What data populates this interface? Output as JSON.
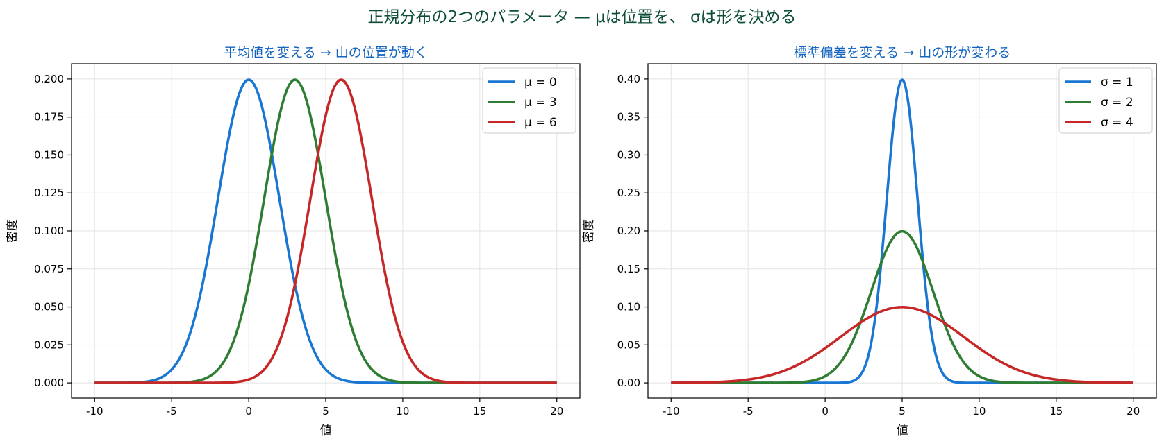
{
  "figure": {
    "title": "正規分布の2つのパラメータ — μは位置を、 σは形を決める",
    "title_color": "#0d4d3a"
  },
  "chart_data": [
    {
      "type": "line",
      "title": "平均値を変える → 山の位置が動く",
      "title_color": "#1565c0",
      "xlabel": "値",
      "ylabel": "密度",
      "xlim": [
        -11.5,
        21.5
      ],
      "ylim": [
        -0.01,
        0.21
      ],
      "xticks": [
        -10,
        -5,
        0,
        5,
        10,
        15,
        20
      ],
      "xtick_labels": [
        "-10",
        "-5",
        "0",
        "5",
        "10",
        "15",
        "20"
      ],
      "yticks": [
        0,
        0.025,
        0.05,
        0.075,
        0.1,
        0.125,
        0.15,
        0.175,
        0.2
      ],
      "ytick_labels": [
        "0.000",
        "0.025",
        "0.050",
        "0.075",
        "0.100",
        "0.125",
        "0.150",
        "0.175",
        "0.200"
      ],
      "grid": true,
      "legend_position": "top-right",
      "x_domain": [
        -10,
        20
      ],
      "series": [
        {
          "name": "μ = 0",
          "mu": 0,
          "sigma": 2,
          "color": "#1976d2"
        },
        {
          "name": "μ = 3",
          "mu": 3,
          "sigma": 2,
          "color": "#2e7d32"
        },
        {
          "name": "μ = 6",
          "mu": 6,
          "sigma": 2,
          "color": "#c62828"
        }
      ]
    },
    {
      "type": "line",
      "title": "標準偏差を変える → 山の形が変わる",
      "title_color": "#1565c0",
      "xlabel": "値",
      "ylabel": "密度",
      "xlim": [
        -11.5,
        21.5
      ],
      "ylim": [
        -0.02,
        0.42
      ],
      "xticks": [
        -10,
        -5,
        0,
        5,
        10,
        15,
        20
      ],
      "xtick_labels": [
        "-10",
        "-5",
        "0",
        "5",
        "10",
        "15",
        "20"
      ],
      "yticks": [
        0,
        0.05,
        0.1,
        0.15,
        0.2,
        0.25,
        0.3,
        0.35,
        0.4
      ],
      "ytick_labels": [
        "0.00",
        "0.05",
        "0.10",
        "0.15",
        "0.20",
        "0.25",
        "0.30",
        "0.35",
        "0.40"
      ],
      "grid": true,
      "legend_position": "top-right",
      "x_domain": [
        -10,
        20
      ],
      "series": [
        {
          "name": "σ = 1",
          "mu": 5,
          "sigma": 1,
          "color": "#1976d2"
        },
        {
          "name": "σ = 2",
          "mu": 5,
          "sigma": 2,
          "color": "#2e7d32"
        },
        {
          "name": "σ = 4",
          "mu": 5,
          "sigma": 4,
          "color": "#c62828"
        }
      ]
    }
  ]
}
